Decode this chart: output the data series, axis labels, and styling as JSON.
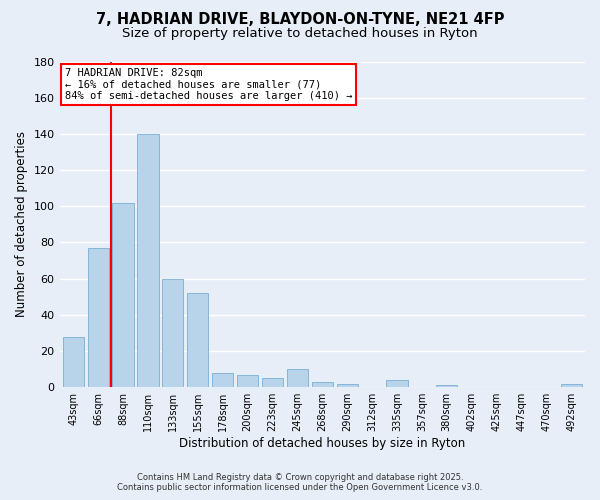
{
  "title_line1": "7, HADRIAN DRIVE, BLAYDON-ON-TYNE, NE21 4FP",
  "title_line2": "Size of property relative to detached houses in Ryton",
  "xlabel": "Distribution of detached houses by size in Ryton",
  "ylabel": "Number of detached properties",
  "categories": [
    "43sqm",
    "66sqm",
    "88sqm",
    "110sqm",
    "133sqm",
    "155sqm",
    "178sqm",
    "200sqm",
    "223sqm",
    "245sqm",
    "268sqm",
    "290sqm",
    "312sqm",
    "335sqm",
    "357sqm",
    "380sqm",
    "402sqm",
    "425sqm",
    "447sqm",
    "470sqm",
    "492sqm"
  ],
  "values": [
    28,
    77,
    102,
    140,
    60,
    52,
    8,
    7,
    5,
    10,
    3,
    2,
    0,
    4,
    0,
    1,
    0,
    0,
    0,
    0,
    2
  ],
  "bar_color": "#b8d4ea",
  "bar_edge_color": "#7aafd4",
  "red_line_index": 2,
  "ylim": [
    0,
    180
  ],
  "yticks": [
    0,
    20,
    40,
    60,
    80,
    100,
    120,
    140,
    160,
    180
  ],
  "annotation_title": "7 HADRIAN DRIVE: 82sqm",
  "annotation_line1": "← 16% of detached houses are smaller (77)",
  "annotation_line2": "84% of semi-detached houses are larger (410) →",
  "footer_line1": "Contains HM Land Registry data © Crown copyright and database right 2025.",
  "footer_line2": "Contains public sector information licensed under the Open Government Licence v3.0.",
  "background_color": "#e8eef8",
  "grid_color": "#ffffff",
  "title_fontsize": 10.5,
  "subtitle_fontsize": 9.5
}
